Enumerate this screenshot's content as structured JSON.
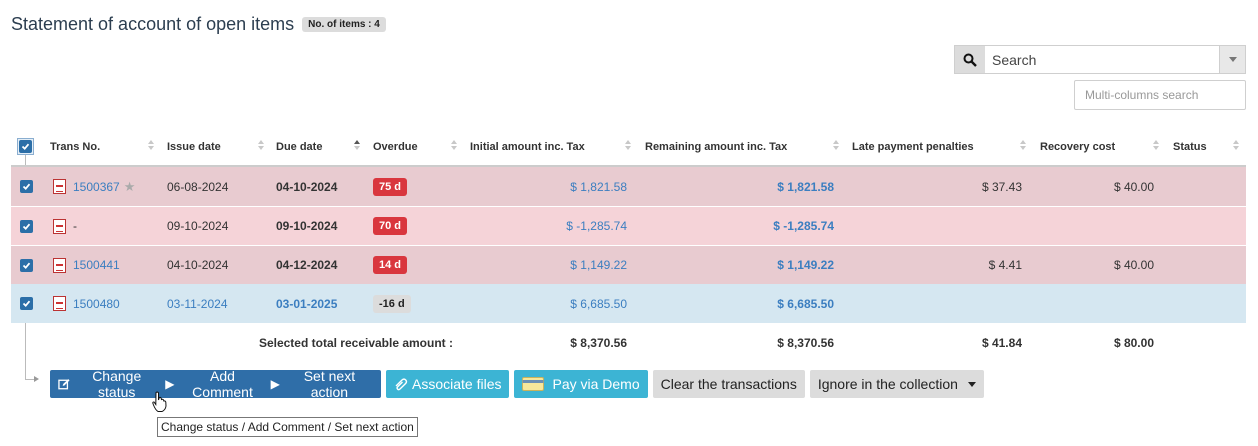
{
  "header": {
    "title": "Statement of account of open items",
    "count_badge": "No. of items : 4"
  },
  "search": {
    "placeholder": "Search",
    "multi_placeholder": "Multi-columns search"
  },
  "columns": [
    "Trans No.",
    "Issue date",
    "Due date",
    "Overdue",
    "Initial amount inc. Tax",
    "Remaining amount inc. Tax",
    "Late payment penalties",
    "Recovery cost",
    "Status"
  ],
  "rows": [
    {
      "trans_no": "1500367",
      "issue_date": "06-08-2024",
      "due_date": "04-10-2024",
      "overdue": "75 d",
      "initial": "$ 1,821.58",
      "remaining": "$ 1,821.58",
      "penalties": "$ 37.43",
      "recovery": "$ 40.00",
      "status": ""
    },
    {
      "trans_no": "-",
      "issue_date": "09-10-2024",
      "due_date": "09-10-2024",
      "overdue": "70 d",
      "initial": "$ -1,285.74",
      "remaining": "$ -1,285.74",
      "penalties": "",
      "recovery": "",
      "status": ""
    },
    {
      "trans_no": "1500441",
      "issue_date": "04-10-2024",
      "due_date": "04-12-2024",
      "overdue": "14 d",
      "initial": "$ 1,149.22",
      "remaining": "$ 1,149.22",
      "penalties": "$ 4.41",
      "recovery": "$ 40.00",
      "status": ""
    },
    {
      "trans_no": "1500480",
      "issue_date": "03-11-2024",
      "due_date": "03-01-2025",
      "overdue": "-16 d",
      "initial": "$ 6,685.50",
      "remaining": "$ 6,685.50",
      "penalties": "",
      "recovery": "",
      "status": ""
    }
  ],
  "totals": {
    "label": "Selected total receivable amount :",
    "initial": "$ 8,370.56",
    "remaining": "$ 8,370.56",
    "penalties": "$ 41.84",
    "recovery": "$ 80.00"
  },
  "actions": {
    "change_status": "Change status",
    "add_comment": "Add Comment",
    "set_next_action": "Set next action",
    "associate_files": "Associate files",
    "pay_demo": "Pay via Demo",
    "clear_transactions": "Clear the transactions",
    "ignore_collection": "Ignore in the collection"
  },
  "tooltip": "Change status / Add Comment / Set next action",
  "colors": {
    "overdue": "#d9363e",
    "primary": "#2f6ea8",
    "cyan": "#3cb4d4",
    "row_red": "#e8cbd0",
    "row_pink": "#f5d3d8",
    "row_blue": "#d5e7f1"
  }
}
